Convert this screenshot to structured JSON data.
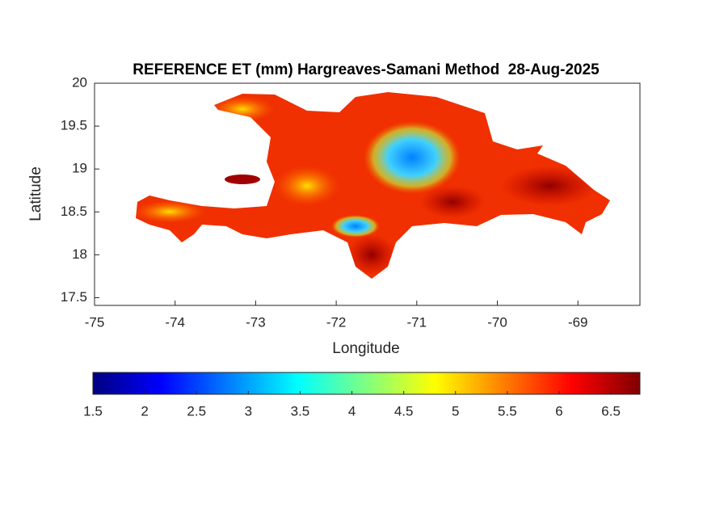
{
  "chart_data": {
    "type": "map",
    "title": "REFERENCE ET (mm) Hargreaves-Samani Method  28-Aug-2025",
    "xlabel": "Longitude",
    "ylabel": "Latitude",
    "xlim": [
      -75,
      -68.23
    ],
    "ylim": [
      17.41,
      20
    ],
    "xticks": [
      -75,
      -74,
      -73,
      -72,
      -71,
      -70,
      -69
    ],
    "yticks": [
      17.5,
      18,
      18.5,
      19,
      19.5,
      20
    ],
    "colorbar": {
      "colormap": "jet",
      "clim": [
        1.5,
        6.78
      ],
      "ticks": [
        1.5,
        2,
        2.5,
        3,
        3.5,
        4,
        4.5,
        5,
        5.5,
        6,
        6.5
      ]
    }
  }
}
